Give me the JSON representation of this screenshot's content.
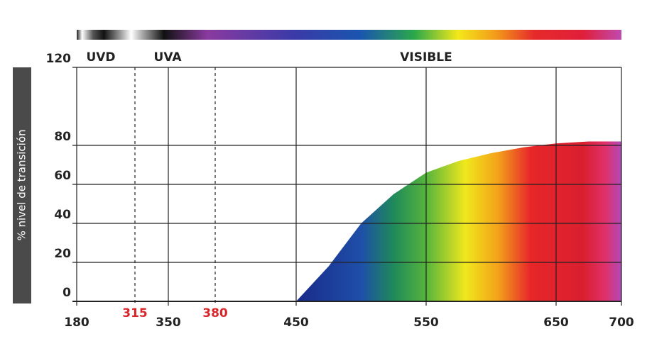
{
  "chart_data": {
    "type": "area",
    "y_label": "% nivel de transición",
    "region_labels": [
      "UVD",
      "UVA",
      "VISIBLE"
    ],
    "x": [
      450,
      475,
      500,
      525,
      550,
      575,
      600,
      625,
      650,
      675,
      700
    ],
    "values": [
      0,
      18,
      40,
      55,
      66,
      72,
      76,
      79,
      81,
      82,
      82
    ],
    "xlim": [
      180,
      700
    ],
    "xticks": [
      180,
      315,
      350,
      380,
      450,
      550,
      650,
      700
    ],
    "xtick_colors": [
      "#222222",
      "#d7262b",
      "#222222",
      "#d7262b",
      "#222222",
      "#222222",
      "#222222",
      "#222222"
    ],
    "xtick_styles": [
      "solid",
      "dashed",
      "solid",
      "dashed",
      "solid",
      "solid",
      "solid",
      "solid"
    ],
    "ylim": [
      0,
      120
    ],
    "yticks": [
      0,
      20,
      40,
      60,
      80,
      120
    ],
    "grid": true
  }
}
